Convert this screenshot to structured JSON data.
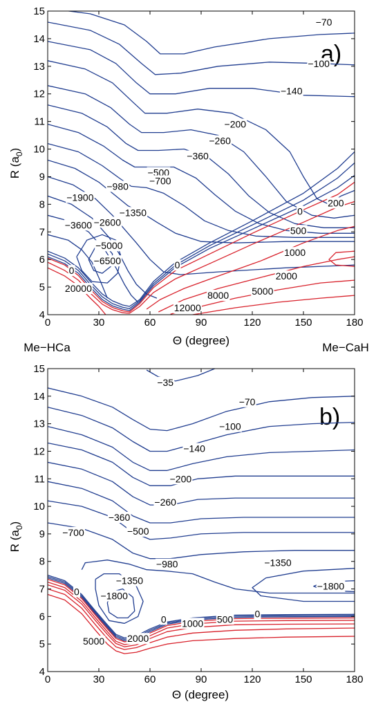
{
  "chart_data": [
    {
      "type": "contour",
      "panel_label": "a)",
      "xlabel": "Θ (degree)",
      "ylabel_base": "R (a",
      "ylabel_sub": "0",
      "ylabel_close": ")",
      "xlim": [
        0,
        180
      ],
      "ylim": [
        4,
        15
      ],
      "x_ticks": [
        0,
        30,
        60,
        90,
        120,
        150,
        180
      ],
      "y_ticks": [
        4,
        5,
        6,
        7,
        8,
        9,
        10,
        11,
        12,
        13,
        14,
        15
      ],
      "endpoint_labels": {
        "left": "Me−HCa",
        "right": "Me−CaH"
      },
      "line_colors": {
        "negative": "#1f3c8f",
        "positive": "#d8202a"
      },
      "contour_levels": [
        -70,
        -100,
        -140,
        -200,
        -260,
        -360,
        -500,
        -700,
        -980,
        -1350,
        -1900,
        -2600,
        -3600,
        -5000,
        -6500,
        0,
        200,
        500,
        1000,
        2000,
        5000,
        8000,
        12000,
        20000
      ],
      "contour_labels": [
        {
          "text": "−70",
          "x": 162,
          "y": 14.6
        },
        {
          "text": "−100",
          "x": 159,
          "y": 13.1
        },
        {
          "text": "−140",
          "x": 143,
          "y": 12.1
        },
        {
          "text": "−200",
          "x": 110,
          "y": 10.9
        },
        {
          "text": "−260",
          "x": 101,
          "y": 10.3
        },
        {
          "text": "−360",
          "x": 88,
          "y": 9.75
        },
        {
          "text": "−500",
          "x": 65,
          "y": 9.15
        },
        {
          "text": "−700",
          "x": 66,
          "y": 8.85
        },
        {
          "text": "−980",
          "x": 41,
          "y": 8.65
        },
        {
          "text": "−1350",
          "x": 50,
          "y": 7.7
        },
        {
          "text": "−1900",
          "x": 19,
          "y": 8.25
        },
        {
          "text": "−2600",
          "x": 35,
          "y": 7.35
        },
        {
          "text": "−3600",
          "x": 18,
          "y": 7.25
        },
        {
          "text": "−5000",
          "x": 36,
          "y": 6.5
        },
        {
          "text": "−6500",
          "x": 35,
          "y": 5.95
        },
        {
          "text": "0",
          "x": 14,
          "y": 5.6
        },
        {
          "text": "20000",
          "x": 18,
          "y": 4.95
        },
        {
          "text": "0",
          "x": 76,
          "y": 5.8
        },
        {
          "text": "0",
          "x": 148,
          "y": 7.75
        },
        {
          "text": "200",
          "x": 169,
          "y": 8.05
        },
        {
          "text": "500",
          "x": 147,
          "y": 7.05
        },
        {
          "text": "1000",
          "x": 145,
          "y": 6.25
        },
        {
          "text": "2000",
          "x": 140,
          "y": 5.4
        },
        {
          "text": "5000",
          "x": 126,
          "y": 4.85
        },
        {
          "text": "8000",
          "x": 100,
          "y": 4.7
        },
        {
          "text": "12000",
          "x": 82,
          "y": 4.25
        }
      ]
    },
    {
      "type": "contour",
      "panel_label": "b)",
      "xlabel": "Θ (degree)",
      "ylabel_base": "R (a",
      "ylabel_sub": "0",
      "ylabel_close": ")",
      "xlim": [
        0,
        180
      ],
      "ylim": [
        4,
        15
      ],
      "x_ticks": [
        0,
        30,
        60,
        90,
        120,
        150,
        180
      ],
      "y_ticks": [
        4,
        5,
        6,
        7,
        8,
        9,
        10,
        11,
        12,
        13,
        14,
        15
      ],
      "line_colors": {
        "negative": "#1f3c8f",
        "positive": "#d8202a"
      },
      "contour_levels": [
        -35,
        -70,
        -100,
        -140,
        -200,
        -260,
        -360,
        -500,
        -700,
        -980,
        -1350,
        -1800,
        0,
        500,
        1000,
        2000,
        5000
      ],
      "contour_labels": [
        {
          "text": "−35",
          "x": 69,
          "y": 14.5
        },
        {
          "text": "−70",
          "x": 117,
          "y": 13.8
        },
        {
          "text": "−100",
          "x": 107,
          "y": 12.9
        },
        {
          "text": "−140",
          "x": 86,
          "y": 12.1
        },
        {
          "text": "−200",
          "x": 78,
          "y": 11.0
        },
        {
          "text": "−260",
          "x": 69,
          "y": 10.15
        },
        {
          "text": "−360",
          "x": 42,
          "y": 9.6
        },
        {
          "text": "−500",
          "x": 53,
          "y": 9.1
        },
        {
          "text": "−700",
          "x": 15,
          "y": 9.05
        },
        {
          "text": "−980",
          "x": 70,
          "y": 7.9
        },
        {
          "text": "−1350",
          "x": 135,
          "y": 7.95
        },
        {
          "text": "−1350",
          "x": 48,
          "y": 7.3
        },
        {
          "text": "−1800",
          "x": 166,
          "y": 7.1
        },
        {
          "text": "−1800",
          "x": 39,
          "y": 6.75
        },
        {
          "text": "0",
          "x": 17,
          "y": 6.9
        },
        {
          "text": "0",
          "x": 68,
          "y": 5.9
        },
        {
          "text": "1000",
          "x": 85,
          "y": 5.75
        },
        {
          "text": "500",
          "x": 104,
          "y": 5.9
        },
        {
          "text": "0",
          "x": 123,
          "y": 6.1
        },
        {
          "text": "2000",
          "x": 53,
          "y": 5.2
        },
        {
          "text": "5000",
          "x": 27,
          "y": 5.1
        }
      ]
    }
  ]
}
